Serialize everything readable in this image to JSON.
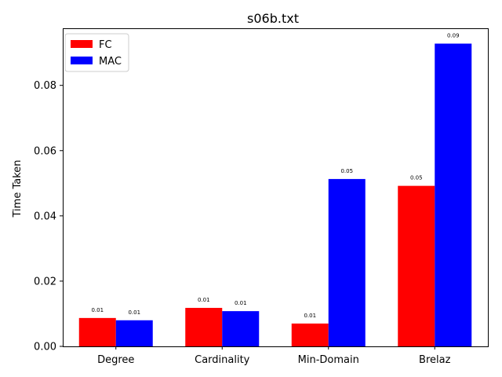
{
  "chart_data": {
    "type": "bar",
    "title": "s06b.txt",
    "xlabel": "",
    "ylabel": "Time Taken",
    "categories": [
      "Degree",
      "Cardinality",
      "Min-Domain",
      "Brelaz"
    ],
    "series": [
      {
        "name": "FC",
        "color": "#ff0000",
        "values": [
          0.0087,
          0.0118,
          0.007,
          0.0492
        ],
        "labels": [
          "0.01",
          "0.01",
          "0.01",
          "0.05"
        ]
      },
      {
        "name": "MAC",
        "color": "#0000ff",
        "values": [
          0.008,
          0.0108,
          0.0513,
          0.0928
        ],
        "labels": [
          "0.01",
          "0.01",
          "0.05",
          "0.09"
        ]
      }
    ],
    "ylim": [
      0,
      0.0975
    ],
    "yticks": [
      0.0,
      0.02,
      0.04,
      0.06,
      0.08
    ],
    "ytick_labels": [
      "0.00",
      "0.02",
      "0.04",
      "0.06",
      "0.08"
    ],
    "legend_position": "upper-left",
    "grid": false
  }
}
